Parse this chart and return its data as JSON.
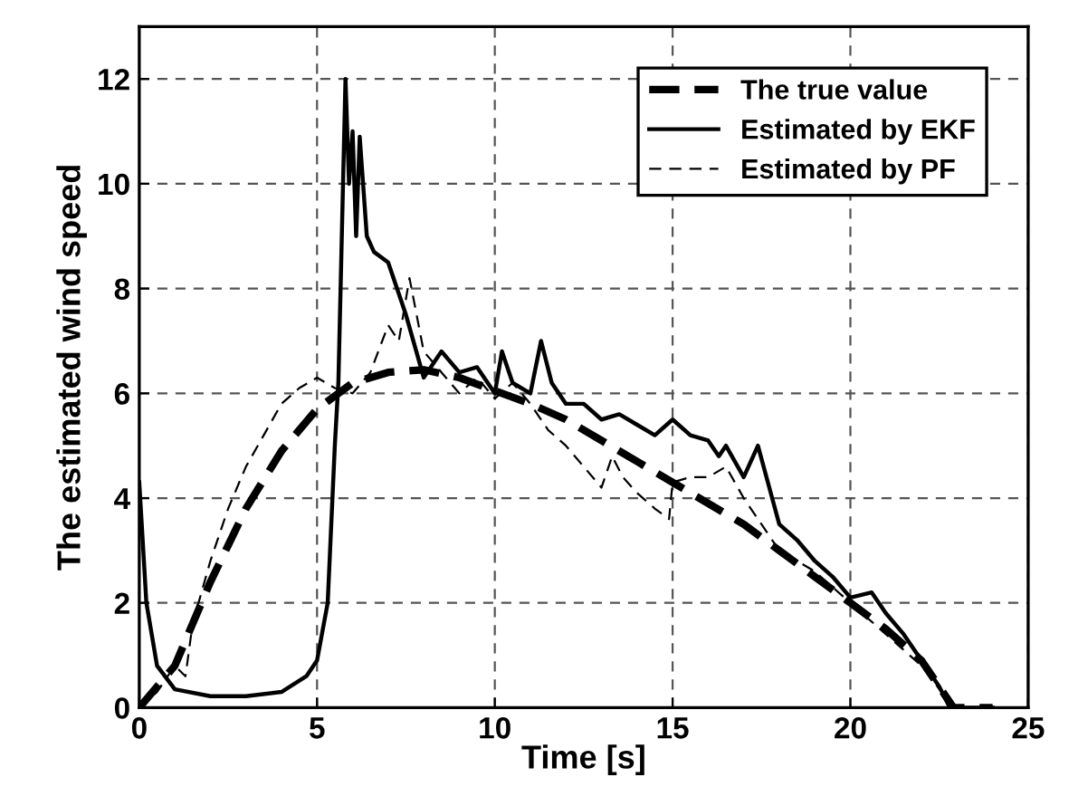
{
  "chart_data": {
    "type": "line",
    "xlabel": "Time [s]",
    "ylabel": "The estimated wind speed",
    "xlim": [
      0,
      25
    ],
    "ylim": [
      0,
      13
    ],
    "xticks": [
      0,
      5,
      10,
      15,
      20,
      25
    ],
    "yticks": [
      0,
      2,
      4,
      6,
      8,
      10,
      12
    ],
    "grid": true,
    "legend": "top right",
    "series": [
      {
        "name": "The true value",
        "color": "#000000",
        "line_style": "dashed",
        "x": [
          0,
          1,
          2,
          3,
          4,
          5,
          6,
          7,
          8,
          9,
          10,
          11,
          12,
          13,
          14,
          15,
          16,
          17,
          18,
          19,
          20,
          21,
          22,
          22.5,
          22.9,
          24
        ],
        "values": [
          0,
          0.8,
          2.4,
          3.8,
          4.9,
          5.7,
          6.2,
          6.4,
          6.45,
          6.3,
          6.05,
          5.8,
          5.5,
          5.1,
          4.7,
          4.3,
          3.9,
          3.5,
          3.0,
          2.5,
          2.0,
          1.5,
          0.9,
          0.4,
          0,
          0
        ]
      },
      {
        "name": "Estimated by EKF",
        "color": "#000000",
        "line_style": "solid",
        "x": [
          0,
          0.2,
          0.5,
          1,
          2,
          3,
          4,
          4.7,
          5.0,
          5.3,
          5.5,
          5.6,
          5.8,
          5.9,
          6.0,
          6.1,
          6.2,
          6.4,
          6.6,
          7,
          7.5,
          8,
          8.5,
          9,
          9.5,
          10,
          10.2,
          10.5,
          11,
          11.3,
          11.6,
          12,
          12.5,
          13,
          13.5,
          14,
          14.5,
          15,
          15.5,
          16,
          16.3,
          16.5,
          17,
          17.4,
          17.8,
          18,
          18.5,
          19,
          19.5,
          20,
          20.6,
          21,
          21.5,
          22,
          22.5,
          22.8,
          24
        ],
        "values": [
          4.3,
          2,
          0.8,
          0.35,
          0.22,
          0.22,
          0.3,
          0.6,
          0.9,
          2,
          5,
          6.2,
          12,
          10,
          11,
          9,
          10.9,
          9,
          8.7,
          8.5,
          7.5,
          6.3,
          6.8,
          6.4,
          6.5,
          6.0,
          6.8,
          6.2,
          6.0,
          7.0,
          6.2,
          5.8,
          5.8,
          5.5,
          5.6,
          5.4,
          5.2,
          5.5,
          5.2,
          5.1,
          4.8,
          5.0,
          4.4,
          5.0,
          4.0,
          3.5,
          3.2,
          2.8,
          2.5,
          2.1,
          2.2,
          1.8,
          1.4,
          0.9,
          0.4,
          0,
          0
        ]
      },
      {
        "name": "Estimated by PF",
        "color": "#000000",
        "line_style": "dashed",
        "x": [
          0,
          0.5,
          1,
          1.3,
          1.5,
          2,
          2.5,
          3,
          3.5,
          4,
          4.5,
          5,
          5.5,
          6,
          6.5,
          7,
          7.3,
          7.6,
          8,
          8.5,
          9,
          9.5,
          10,
          10.5,
          11,
          11.5,
          12,
          12.5,
          13,
          13.3,
          13.6,
          14,
          14.5,
          14.9,
          15,
          15.5,
          16,
          16.5,
          17,
          17.5,
          18,
          18.5,
          19,
          20,
          21,
          22,
          22.9
        ],
        "values": [
          0,
          0.3,
          0.8,
          0.6,
          1.6,
          2.8,
          3.8,
          4.6,
          5.2,
          5.8,
          6.1,
          6.3,
          6.1,
          6.0,
          6.4,
          7.3,
          7.0,
          8.2,
          6.8,
          6.4,
          6.0,
          6.3,
          5.9,
          6.2,
          5.8,
          5.3,
          5.0,
          4.6,
          4.2,
          4.8,
          4.4,
          4.1,
          3.8,
          3.6,
          4.3,
          4.4,
          4.4,
          4.6,
          4.0,
          3.5,
          3.0,
          2.8,
          2.6,
          2.0,
          1.4,
          0.8,
          0
        ]
      }
    ]
  }
}
